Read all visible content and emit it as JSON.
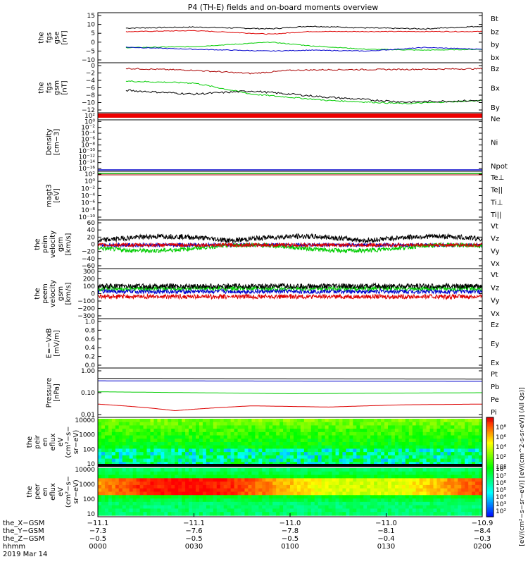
{
  "title": "P4 (TH-E) fields and on-board moments overview",
  "panels": [
    {
      "id": "fgs-gse",
      "ylabel": [
        "the",
        "fgs",
        "gse",
        "[nT]"
      ],
      "ticks": [
        "15",
        "10",
        "5",
        "0",
        "−5",
        "−10"
      ],
      "legend": [
        {
          "t": "Bt",
          "c": "#000000"
        },
        {
          "t": "bz",
          "c": "#dd0000"
        },
        {
          "t": "by",
          "c": "#00cc00"
        },
        {
          "t": "bx",
          "c": "#0000cc"
        }
      ]
    },
    {
      "id": "fgs-gsm",
      "ylabel": [
        "the",
        "fgs",
        "gsm",
        "[nT]"
      ],
      "ticks": [
        "0",
        "−2",
        "−4",
        "−6",
        "−8",
        "−10",
        "−12"
      ],
      "legend": [
        {
          "t": "Bz",
          "c": "#aa0000"
        },
        {
          "t": "Bx",
          "c": "#000000"
        },
        {
          "t": "By",
          "c": "#00cc00"
        }
      ]
    },
    {
      "id": "density",
      "ylabel": [
        "Density",
        "[cm−3]"
      ],
      "ticks": [
        "10²",
        "10⁰",
        "10⁻²",
        "10⁻⁴",
        "10⁻⁶",
        "10⁻⁸",
        "10⁻¹⁰",
        "10⁻¹²",
        "10⁻¹⁴",
        "10⁻¹⁶"
      ],
      "legend": [
        {
          "t": "Ne",
          "c": "#dd0000"
        },
        {
          "t": "Ni",
          "c": "#000000"
        },
        {
          "t": "Npot",
          "c": "#0000cc"
        }
      ]
    },
    {
      "id": "temp",
      "ylabel": [
        "magt3",
        "[eV]"
      ],
      "ticks": [
        "10²",
        "10⁰",
        "10⁻²",
        "10⁻⁴",
        "10⁻⁶",
        "10⁻⁸",
        "10⁻¹⁰"
      ],
      "legend": [
        {
          "t": "Te⊥",
          "c": "#dd0000"
        },
        {
          "t": "Te||",
          "c": "#000000"
        },
        {
          "t": "Ti⊥",
          "c": "#00aa00"
        },
        {
          "t": "Ti||",
          "c": "#00cc00"
        }
      ]
    },
    {
      "id": "peim-vel",
      "ylabel": [
        "the",
        "peim",
        "velocity",
        "gsm",
        "[km/s]"
      ],
      "ticks": [
        "60",
        "40",
        "20",
        "0",
        "−20",
        "−40",
        "−60"
      ],
      "legend": [
        {
          "t": "Vt",
          "c": "#000000"
        },
        {
          "t": "Vz",
          "c": "#dd0000"
        },
        {
          "t": "Vy",
          "c": "#00cc00"
        },
        {
          "t": "Vx",
          "c": "#0000cc"
        }
      ]
    },
    {
      "id": "peem-vel",
      "ylabel": [
        "the",
        "peem",
        "velocity",
        "gsm",
        "[km/s]"
      ],
      "ticks": [
        "300",
        "200",
        "100",
        "0",
        "−100",
        "−200",
        "−300"
      ],
      "legend": [
        {
          "t": "Vt",
          "c": "#000000"
        },
        {
          "t": "Vz",
          "c": "#dd0000"
        },
        {
          "t": "Vy",
          "c": "#00cc00"
        },
        {
          "t": "Vx",
          "c": "#0000cc"
        }
      ]
    },
    {
      "id": "efield",
      "ylabel": [
        "E=−VxB",
        "[mV/m]"
      ],
      "ticks": [
        "1.0",
        "0.8",
        "0.6",
        "0.4",
        "0.2",
        "0.0"
      ],
      "legend": [
        {
          "t": "Ez",
          "c": "#dd0000"
        },
        {
          "t": "Ey",
          "c": "#00cc00"
        },
        {
          "t": "Ex",
          "c": "#0000cc"
        }
      ]
    },
    {
      "id": "pressure",
      "ylabel": [
        "Pressure",
        "[nPa]"
      ],
      "ticks": [
        "1.00",
        "0.10",
        "0.01"
      ],
      "legend": [
        {
          "t": "Pt",
          "c": "#000000"
        },
        {
          "t": "Pb",
          "c": "#dd0000"
        },
        {
          "t": "Pe",
          "c": "#00cc00"
        },
        {
          "t": "Pi",
          "c": "#0000cc"
        }
      ]
    },
    {
      "id": "peir",
      "ylabel": [
        "the",
        "peir",
        "en",
        "eflux",
        "eV",
        "(cm²−s−",
        "sr−eV)"
      ],
      "ticks": [
        "10000",
        "1000",
        "100",
        "10"
      ],
      "legend": []
    },
    {
      "id": "peer",
      "ylabel": [
        "the",
        "peer",
        "en",
        "eflux",
        "eV",
        "(cm²−s−",
        "sr−eV)"
      ],
      "ticks": [
        "10000",
        "1000",
        "100",
        "10"
      ],
      "legend": []
    }
  ],
  "colorbar": {
    "label": "[eV/(cm²−s−sr−eV)] [eV/(cm^2-s-sr-eV)] (All Qs)]",
    "ticks_top": [
      "10⁸",
      "10⁶",
      "10⁴",
      "10²",
      "10⁰"
    ],
    "ticks_bottom": [
      "10⁸",
      "10⁷",
      "10⁶",
      "10⁵",
      "10⁴",
      "10³",
      "10²"
    ]
  },
  "footer": {
    "row_labels": [
      "the_X−GSM",
      "the_Y−GSM",
      "the_Z−GSM",
      "hhmm",
      "2019 Mar 14"
    ],
    "columns": [
      [
        "−11.1",
        "−7.3",
        "−0.5",
        "0000"
      ],
      [
        "−11.1",
        "−7.6",
        "−0.5",
        "0030"
      ],
      [
        "−11.0",
        "−7.8",
        "−0.5",
        "0100"
      ],
      [
        "−11.0",
        "−8.1",
        "−0.4",
        "0130"
      ],
      [
        "−10.9",
        "−8.4",
        "−0.3",
        "0200"
      ]
    ]
  },
  "chart_data": {
    "type": "line",
    "x_label": "hhmm",
    "x_ticks": [
      "0000",
      "0030",
      "0100",
      "0130",
      "0200"
    ],
    "date": "2019 Mar 14",
    "xlim": [
      "0000",
      "0200"
    ],
    "panels": [
      {
        "name": "fgs-gse",
        "ylim": [
          -10,
          15
        ],
        "series": [
          {
            "name": "Bt",
            "color": "#000000",
            "x": [
              0.1,
              0.25,
              0.45,
              0.55,
              0.7,
              0.85,
              1.0
            ],
            "y": [
              8,
              8.5,
              7.5,
              9,
              8,
              7.5,
              9
            ]
          },
          {
            "name": "bz",
            "color": "#dd0000",
            "x": [
              0.1,
              0.25,
              0.45,
              0.55,
              0.7,
              0.85,
              1.0
            ],
            "y": [
              6,
              6.5,
              4.5,
              6,
              6,
              6,
              6
            ]
          },
          {
            "name": "by",
            "color": "#00cc00",
            "x": [
              0.1,
              0.25,
              0.45,
              0.55,
              0.7,
              0.85,
              1.0
            ],
            "y": [
              -3,
              -2.5,
              0,
              -2,
              -4,
              -4.5,
              -4
            ]
          },
          {
            "name": "bx",
            "color": "#0000cc",
            "x": [
              0.1,
              0.25,
              0.45,
              0.55,
              0.7,
              0.85,
              1.0
            ],
            "y": [
              -3,
              -4,
              -5,
              -4.5,
              -5,
              -3,
              -4
            ]
          }
        ]
      },
      {
        "name": "fgs-gsm",
        "ylim": [
          -13,
          1
        ],
        "series": [
          {
            "name": "Bz",
            "color": "#aa0000",
            "x": [
              0.1,
              0.25,
              0.4,
              0.5,
              0.6,
              0.8,
              1.0
            ],
            "y": [
              0,
              -0.5,
              -1.5,
              -0.5,
              -0.3,
              -0.2,
              0
            ]
          },
          {
            "name": "By",
            "color": "#00cc00",
            "x": [
              0.1,
              0.25,
              0.4,
              0.5,
              0.6,
              0.8,
              1.0
            ],
            "y": [
              -4,
              -4.5,
              -8,
              -9,
              -10,
              -11,
              -10
            ]
          },
          {
            "name": "Bx",
            "color": "#000000",
            "x": [
              0.1,
              0.25,
              0.4,
              0.5,
              0.6,
              0.8,
              1.0
            ],
            "y": [
              -7,
              -8,
              -7,
              -8,
              -9,
              -10.5,
              -10
            ]
          }
        ]
      },
      {
        "name": "pressure",
        "ylim": [
          0.01,
          1.0
        ],
        "series": [
          {
            "name": "Pt",
            "color": "#000000",
            "x": [
              0,
              0.5,
              1.0
            ],
            "y": [
              0.45,
              0.43,
              0.42
            ]
          },
          {
            "name": "Pi",
            "color": "#0000cc",
            "x": [
              0,
              0.5,
              1.0
            ],
            "y": [
              0.35,
              0.34,
              0.33
            ]
          },
          {
            "name": "Pe",
            "color": "#00cc00",
            "x": [
              0,
              0.5,
              1.0
            ],
            "y": [
              0.11,
              0.09,
              0.1
            ]
          },
          {
            "name": "Pb",
            "color": "#dd0000",
            "x": [
              0,
              0.2,
              0.4,
              0.6,
              0.8,
              1.0
            ],
            "y": [
              0.03,
              0.015,
              0.025,
              0.022,
              0.028,
              0.03
            ]
          }
        ]
      }
    ]
  }
}
